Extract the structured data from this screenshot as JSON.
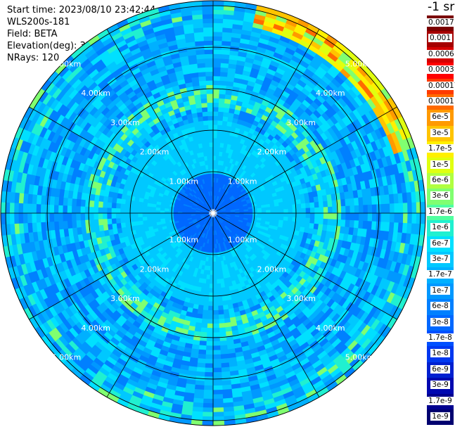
{
  "info": {
    "start_time": "Start time: 2023/08/10 23:42:44",
    "instrument": "WLS200s-181",
    "field": "Field: BETA",
    "elevation": "Elevation(deg): 35.30",
    "nrays": "NRays: 120"
  },
  "unit_label": "-1 sr",
  "chart_data": {
    "type": "heatmap",
    "projection": "polar",
    "field": "BETA",
    "rays": 120,
    "range_rings_km": [
      1,
      2,
      3,
      4,
      5
    ],
    "range_labels": [
      "1.00km",
      "2.00km",
      "3.00km",
      "4.00km",
      "5.00km"
    ],
    "max_range_km": 5.12,
    "spokes_every_deg": 30,
    "colorbar": {
      "labels": [
        "0.0017",
        "0.001",
        "0.0006",
        "0.0003",
        "0.00017",
        "0.0001",
        "6e-5",
        "3e-5",
        "1.7e-5",
        "1e-5",
        "6e-6",
        "3e-6",
        "1.7e-6",
        "1e-6",
        "6e-7",
        "3e-7",
        "1.7e-7",
        "1e-7",
        "6e-8",
        "3e-8",
        "1.7e-8",
        "1e-8",
        "6e-9",
        "3e-9",
        "1.7e-9",
        "1e-9"
      ],
      "colors": [
        "#7a0000",
        "#a50000",
        "#d40000",
        "#ff0000",
        "#ff3a00",
        "#ff6a00",
        "#ff9a00",
        "#ffc400",
        "#fff000",
        "#e0ff10",
        "#b0ff40",
        "#80ff70",
        "#50ffa0",
        "#20f0d0",
        "#00e0ff",
        "#00c8ff",
        "#00b0ff",
        "#0098ff",
        "#0080ff",
        "#0068ff",
        "#0050ff",
        "#0038f0",
        "#0020d0",
        "#0008b0",
        "#00008f",
        "#000070"
      ]
    },
    "pattern": {
      "inner_blue_max_km": 0.95,
      "annulus_cyan_km": [
        1.0,
        2.2
      ],
      "bright_ring_km": [
        2.6,
        3.1
      ],
      "outer_bright_edge_km": [
        4.6,
        5.12
      ],
      "outer_bright_sector_deg": [
        10,
        70
      ]
    }
  }
}
